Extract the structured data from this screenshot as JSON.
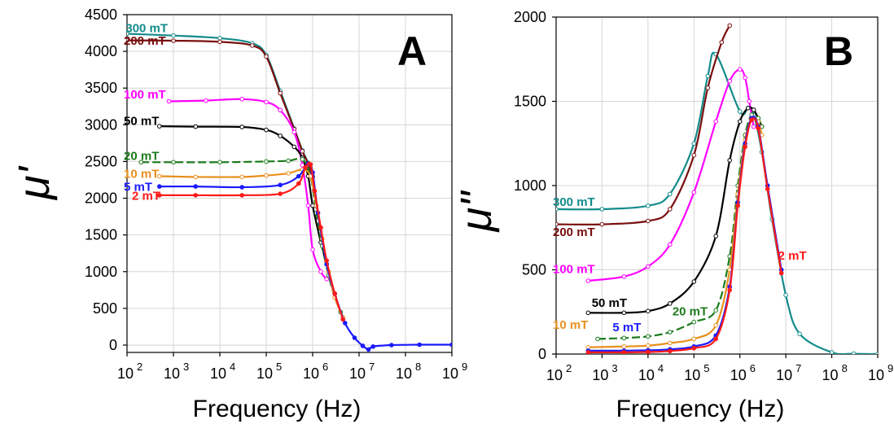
{
  "chart_data": [
    {
      "panel": "A",
      "type": "line",
      "xlabel": "Frequency (Hz)",
      "ylabel": "μ'",
      "xscale": "log",
      "xlim": [
        100,
        1000000000
      ],
      "ylim": [
        -100,
        4500
      ],
      "xticks": [
        100,
        1000,
        10000,
        100000,
        1000000,
        10000000,
        100000000,
        1000000000
      ],
      "xtick_labels": [
        [
          "10",
          "2"
        ],
        [
          "10",
          "3"
        ],
        [
          "10",
          "4"
        ],
        [
          "10",
          "5"
        ],
        [
          "10",
          "6"
        ],
        [
          "10",
          "7"
        ],
        [
          "10",
          "8"
        ],
        [
          "10",
          "9"
        ]
      ],
      "yticks": [
        0,
        500,
        1000,
        1500,
        2000,
        2500,
        3000,
        3500,
        4000,
        4500
      ],
      "ytick_labels": [
        "0",
        "500",
        "1000",
        "1500",
        "2000",
        "2500",
        "3000",
        "3500",
        "4000",
        "4500"
      ],
      "grid": true,
      "series": [
        {
          "name": "300 mT",
          "color": "#138b8b",
          "marker": "open-circle",
          "label_at": [
            110,
            4260
          ],
          "x": [
            100,
            1000,
            10000,
            50000,
            100000,
            200000,
            400000,
            600000,
            800000,
            1000000
          ],
          "y": [
            4240,
            4215,
            4180,
            4110,
            3950,
            3460,
            2950,
            2650,
            2480,
            2300
          ]
        },
        {
          "name": "200 mT",
          "color": "#7a0e0e",
          "marker": "open-circle",
          "label_at": [
            100,
            4090
          ],
          "x": [
            100,
            1000,
            10000,
            50000,
            100000,
            200000,
            400000,
            600000,
            800000,
            1000000
          ],
          "y": [
            4150,
            4145,
            4130,
            4080,
            3930,
            3430,
            2940,
            2640,
            2470,
            2290
          ]
        },
        {
          "name": "100 mT",
          "color": "#ff00ff",
          "marker": "open-circle",
          "label_at": [
            100,
            3360
          ],
          "x": [
            800,
            5000,
            30000,
            100000,
            200000,
            400000,
            600000,
            800000,
            1000000,
            1500000,
            2000000
          ],
          "y": [
            3320,
            3330,
            3350,
            3310,
            3200,
            2900,
            2450,
            1900,
            1300,
            1000,
            900
          ]
        },
        {
          "name": "50 mT",
          "color": "#000000",
          "marker": "open-circle",
          "label_at": [
            100,
            3000
          ],
          "x": [
            500,
            3000,
            30000,
            100000,
            200000,
            400000,
            600000,
            800000,
            1000000,
            1500000,
            2000000
          ],
          "y": [
            2980,
            2975,
            2970,
            2930,
            2850,
            2700,
            2550,
            2300,
            1900,
            1400,
            1100
          ]
        },
        {
          "name": "20 mT",
          "color": "#1b7b1b",
          "marker": "open-circle",
          "label_at": [
            100,
            2520
          ],
          "x": [
            200,
            1000,
            10000,
            100000,
            300000,
            600000,
            900000,
            1200000,
            1600000,
            2200000,
            3000000,
            4000000
          ],
          "y": [
            2490,
            2490,
            2490,
            2500,
            2510,
            2530,
            2300,
            1800,
            1350,
            950,
            650,
            450
          ]
        },
        {
          "name": "10 mT",
          "color": "#e8901e",
          "marker": "open-circle",
          "label_at": [
            100,
            2280
          ],
          "x": [
            500,
            3000,
            30000,
            100000,
            300000,
            600000,
            900000,
            1200000,
            1600000,
            2200000,
            3000000,
            4500000
          ],
          "y": [
            2300,
            2290,
            2290,
            2310,
            2340,
            2390,
            2300,
            1900,
            1450,
            1000,
            650,
            380
          ]
        },
        {
          "name": "5 mT",
          "color": "#1a1aff",
          "marker": "filled-circle",
          "label_at": [
            100,
            2100
          ],
          "x": [
            500,
            3000,
            30000,
            200000,
            500000,
            800000,
            1000000,
            1300000,
            2000000,
            3000000,
            5000000,
            8000000,
            12000000,
            16000000,
            20000000,
            50000000,
            200000000,
            1000000000
          ],
          "y": [
            2160,
            2160,
            2150,
            2180,
            2300,
            2470,
            2350,
            1800,
            1100,
            700,
            300,
            100,
            -10,
            -60,
            -20,
            0,
            5,
            5
          ]
        },
        {
          "name": "2 mT",
          "color": "#ff1a1a",
          "marker": "filled-circle",
          "label_at": [
            150,
            1980
          ],
          "x": [
            500,
            3000,
            30000,
            200000,
            500000,
            700000,
            900000,
            1100000,
            1500000,
            2000000,
            3000000,
            4500000
          ],
          "y": [
            2040,
            2040,
            2040,
            2060,
            2200,
            2420,
            2460,
            2100,
            1600,
            1150,
            700,
            350
          ]
        }
      ]
    },
    {
      "panel": "B",
      "type": "line",
      "xlabel": "Frequency (Hz)",
      "ylabel": "μ\"",
      "xscale": "log",
      "xlim": [
        100,
        1000000000
      ],
      "ylim": [
        0,
        2000
      ],
      "xticks": [
        100,
        1000,
        10000,
        100000,
        1000000,
        10000000,
        100000000,
        1000000000
      ],
      "xtick_labels": [
        [
          "10",
          "2"
        ],
        [
          "10",
          "3"
        ],
        [
          "10",
          "4"
        ],
        [
          "10",
          "5"
        ],
        [
          "10",
          "6"
        ],
        [
          "10",
          "7"
        ],
        [
          "10",
          "8"
        ],
        [
          "10",
          "9"
        ]
      ],
      "yticks": [
        0,
        500,
        1000,
        1500,
        2000
      ],
      "ytick_labels": [
        "0",
        "500",
        "1000",
        "1500",
        "2000"
      ],
      "grid": true,
      "series": [
        {
          "name": "300 mT",
          "color": "#138b8b",
          "marker": "open-circle",
          "label_at": [
            100,
            880
          ],
          "x": [
            100,
            1000,
            10000,
            30000,
            100000,
            200000,
            300000,
            1000000,
            1500000,
            2000000,
            3000000,
            5000000,
            10000000,
            20000000,
            100000000,
            300000000,
            1000000000
          ],
          "y": [
            860,
            860,
            880,
            950,
            1250,
            1650,
            1780,
            1440,
            1460,
            1420,
            1200,
            800,
            350,
            120,
            10,
            2,
            0
          ]
        },
        {
          "name": "200 mT",
          "color": "#7a0e0e",
          "marker": "open-circle",
          "label_at": [
            100,
            700
          ],
          "x": [
            100,
            1000,
            10000,
            30000,
            100000,
            200000,
            400000,
            600000
          ],
          "y": [
            770,
            770,
            790,
            860,
            1180,
            1580,
            1850,
            1950
          ]
        },
        {
          "name": "100 mT",
          "color": "#ff00ff",
          "marker": "open-circle",
          "label_at": [
            100,
            480
          ],
          "x": [
            500,
            3000,
            10000,
            30000,
            100000,
            300000,
            600000,
            1000000,
            1300000,
            1600000,
            2000000
          ],
          "y": [
            435,
            460,
            520,
            650,
            960,
            1380,
            1620,
            1690,
            1640,
            1500,
            1350
          ]
        },
        {
          "name": "50 mT",
          "color": "#000000",
          "marker": "open-circle",
          "label_at": [
            700,
            280
          ],
          "x": [
            500,
            3000,
            10000,
            30000,
            100000,
            300000,
            600000,
            1000000,
            1500000,
            2000000,
            2500000,
            3000000
          ],
          "y": [
            245,
            245,
            255,
            300,
            430,
            700,
            1150,
            1380,
            1460,
            1450,
            1400,
            1350
          ]
        },
        {
          "name": "20 mT",
          "color": "#1b7b1b",
          "marker": "open-circle",
          "label_at": [
            40000,
            230
          ],
          "x": [
            800,
            3000,
            10000,
            30000,
            100000,
            300000,
            600000,
            900000,
            1300000,
            1800000,
            2500000,
            3000000
          ],
          "y": [
            90,
            95,
            105,
            130,
            190,
            260,
            580,
            1000,
            1300,
            1420,
            1400,
            1350
          ]
        },
        {
          "name": "10 mT",
          "color": "#e8901e",
          "marker": "open-circle",
          "label_at": [
            100,
            150
          ],
          "x": [
            500,
            3000,
            10000,
            30000,
            100000,
            300000,
            600000,
            900000,
            1300000,
            1800000,
            2500000,
            3000000
          ],
          "y": [
            40,
            45,
            50,
            65,
            90,
            170,
            500,
            950,
            1270,
            1400,
            1380,
            1300
          ]
        },
        {
          "name": "5 mT",
          "color": "#1a1aff",
          "marker": "filled-circle",
          "label_at": [
            2000,
            135
          ],
          "x": [
            500,
            3000,
            10000,
            30000,
            100000,
            300000,
            600000,
            900000,
            1300000,
            1800000,
            2500000,
            4000000,
            8000000
          ],
          "y": [
            20,
            20,
            22,
            28,
            45,
            110,
            400,
            900,
            1250,
            1400,
            1350,
            1000,
            500
          ]
        },
        {
          "name": "2 mT",
          "color": "#ff1a1a",
          "marker": "filled-circle",
          "label_at": [
            8000000,
            560
          ],
          "x": [
            500,
            3000,
            10000,
            30000,
            100000,
            300000,
            600000,
            900000,
            1300000,
            1800000,
            2500000,
            4000000,
            8000000
          ],
          "y": [
            10,
            10,
            12,
            18,
            35,
            90,
            380,
            880,
            1230,
            1390,
            1340,
            980,
            480
          ]
        }
      ]
    }
  ]
}
